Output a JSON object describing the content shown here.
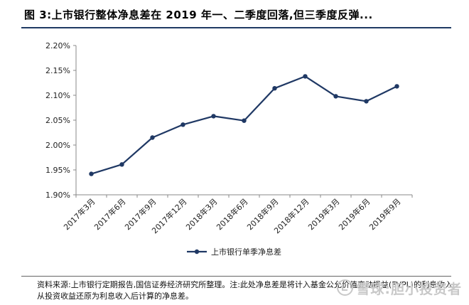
{
  "title": "图 3:上市银行整体净息差在 2019 年一、二季度回落,但三季度反弹...",
  "chart_data": {
    "type": "line",
    "categories": [
      "2017年3月",
      "2017年6月",
      "2017年9月",
      "2017年12月",
      "2018年3月",
      "2018年6月",
      "2018年9月",
      "2018年12月",
      "2019年3月",
      "2019年6月",
      "2019年9月"
    ],
    "series": [
      {
        "name": "上市银行单季净息差",
        "values": [
          1.942,
          1.961,
          2.015,
          2.041,
          2.058,
          2.049,
          2.114,
          2.138,
          2.098,
          2.088,
          2.118
        ]
      }
    ],
    "ylim": [
      1.9,
      2.2
    ],
    "yticks": [
      "1.90%",
      "1.95%",
      "2.00%",
      "2.05%",
      "2.10%",
      "2.15%",
      "2.20%"
    ],
    "ytick_values": [
      1.9,
      1.95,
      2.0,
      2.05,
      2.1,
      2.15,
      2.2
    ],
    "grid": false,
    "legend": "bottom-center",
    "line_color": "#1f3864"
  },
  "source_note": "资料来源:上市银行定期报告,国信证券经济研究所整理。注:此处净息差是将计入基金公允价值变动损益(FVPL)的利息收入从投资收益还原为利息收入后计算的净息差。",
  "watermark": "雪球:胆小投资者"
}
